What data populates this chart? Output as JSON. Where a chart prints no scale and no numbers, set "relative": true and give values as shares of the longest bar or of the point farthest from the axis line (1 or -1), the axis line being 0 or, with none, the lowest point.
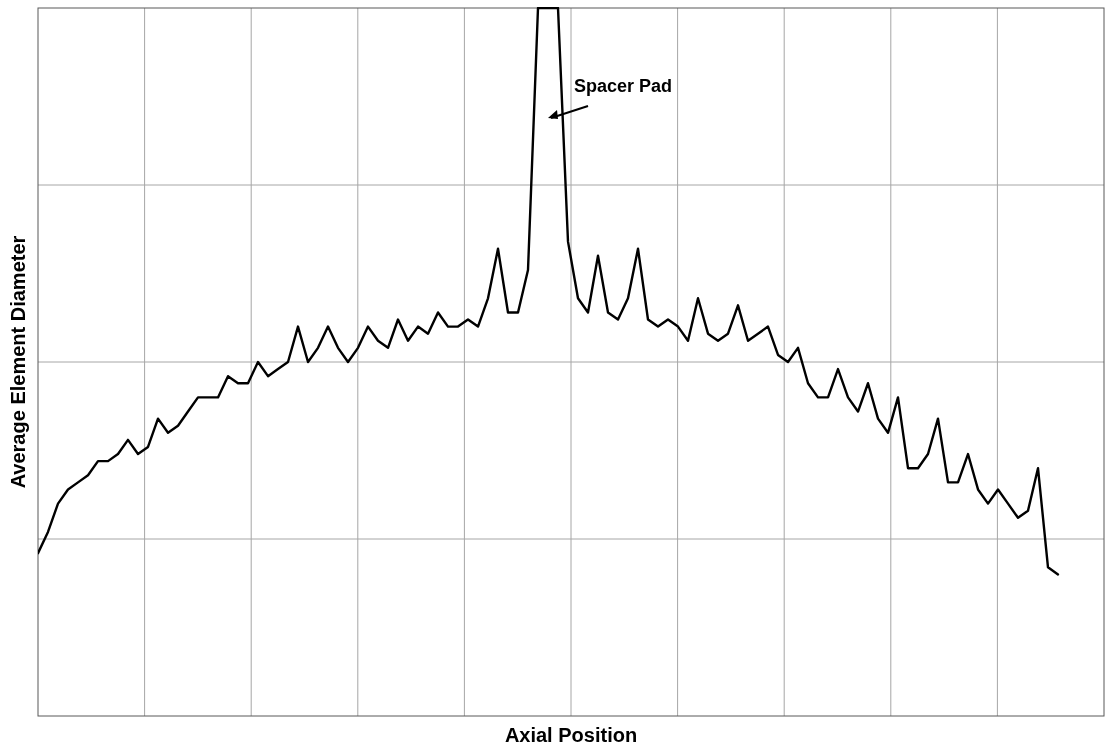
{
  "chart_data": {
    "type": "line",
    "xlabel": "Axial Position",
    "ylabel": "Average Element Diameter",
    "relative": true,
    "grid": true,
    "color": "#000000",
    "annotations": [
      "Spacer Pad"
    ],
    "categories": [
      null,
      null,
      null,
      null,
      null,
      null,
      null,
      null,
      null,
      null,
      null,
      null,
      null,
      null,
      null,
      null,
      null,
      null,
      null,
      null,
      null,
      null,
      null,
      null,
      null,
      null,
      null,
      null,
      null,
      null,
      null,
      null,
      null,
      null,
      null,
      null,
      null,
      null,
      null,
      null,
      null,
      null,
      null,
      null,
      null,
      null,
      null,
      null,
      null,
      null,
      null,
      null,
      null,
      null,
      null,
      null,
      null,
      null,
      null,
      null,
      null,
      null,
      null,
      null,
      null,
      null,
      null,
      null,
      null,
      null,
      null,
      null,
      null,
      null,
      null,
      null,
      null,
      null,
      null,
      null,
      null,
      null,
      null,
      null,
      null,
      null,
      null,
      null,
      null,
      null,
      null,
      null,
      null,
      null,
      null,
      null,
      null,
      null,
      null,
      null,
      null,
      null,
      null
    ],
    "values": [
      0.23,
      0.26,
      0.3,
      0.32,
      0.33,
      0.34,
      0.36,
      0.36,
      0.37,
      0.39,
      0.37,
      0.38,
      0.42,
      0.4,
      0.41,
      0.43,
      0.45,
      0.45,
      0.45,
      0.48,
      0.47,
      0.47,
      0.5,
      0.48,
      0.49,
      0.5,
      0.55,
      0.5,
      0.52,
      0.55,
      0.52,
      0.5,
      0.52,
      0.55,
      0.53,
      0.52,
      0.56,
      0.53,
      0.55,
      0.54,
      0.57,
      0.55,
      0.55,
      0.56,
      0.55,
      0.59,
      0.66,
      0.57,
      0.57,
      0.63,
      1,
      1,
      1,
      0.67,
      0.59,
      0.57,
      0.65,
      0.57,
      0.56,
      0.59,
      0.66,
      0.56,
      0.55,
      0.56,
      0.55,
      0.53,
      0.59,
      0.54,
      0.53,
      0.54,
      0.58,
      0.53,
      0.54,
      0.55,
      0.51,
      0.5,
      0.52,
      0.47,
      0.45,
      0.45,
      0.49,
      0.45,
      0.43,
      0.47,
      0.42,
      0.4,
      0.45,
      0.35,
      0.35,
      0.37,
      0.42,
      0.33,
      0.33,
      0.37,
      0.32,
      0.3,
      0.32,
      0.3,
      0.28,
      0.29,
      0.35,
      0.21,
      0.2
    ]
  }
}
